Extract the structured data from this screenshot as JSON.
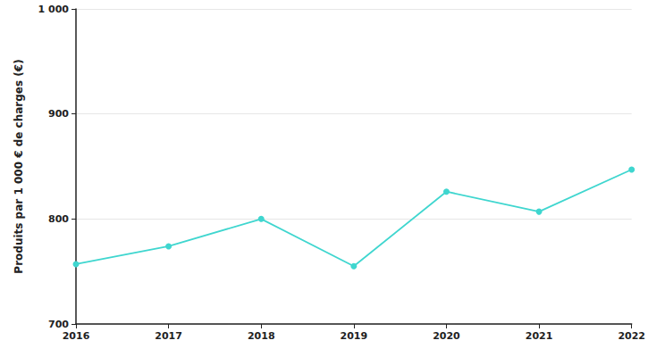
{
  "chart_data": {
    "type": "line",
    "y_label": "Produits par 1 000 € de charges (€)",
    "categories": [
      "2016",
      "2017",
      "2018",
      "2019",
      "2020",
      "2021",
      "2022"
    ],
    "values": [
      757,
      774,
      800,
      755,
      826,
      807,
      847
    ],
    "color": "#3fd6cf",
    "marker": "circle",
    "ylim": [
      700,
      1000
    ],
    "yticks": [
      700,
      800,
      900,
      {
        "value": 1000,
        "label": "1 000"
      }
    ],
    "grid": true
  }
}
